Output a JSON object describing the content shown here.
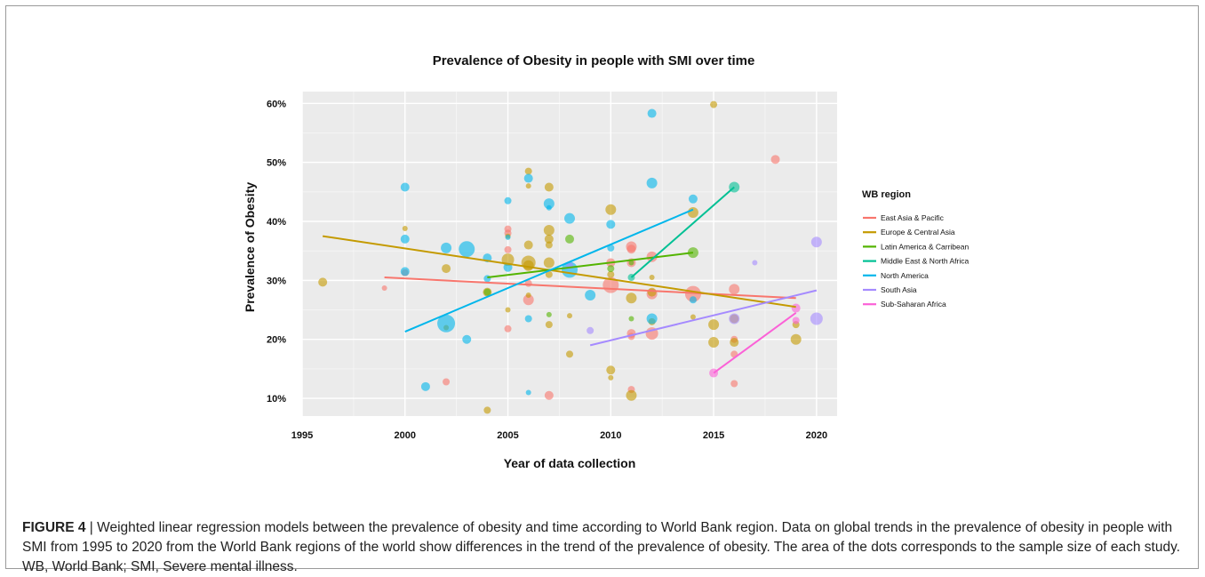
{
  "chart_data": {
    "type": "scatter",
    "title": "Prevalence of Obesity in people with SMI over time",
    "xlabel": "Year of data collection",
    "ylabel": "Prevalence of Obesity",
    "xlim": [
      1995,
      2021
    ],
    "ylim": [
      7,
      62
    ],
    "x_ticks": [
      1995,
      2000,
      2005,
      2010,
      2015,
      2020
    ],
    "y_ticks": [
      10,
      20,
      30,
      40,
      50,
      60
    ],
    "y_tick_labels": [
      "10%",
      "20%",
      "30%",
      "40%",
      "50%",
      "60%"
    ],
    "grid": true,
    "legend": {
      "title": "WB region",
      "placement": "right"
    },
    "series": [
      {
        "name": "East Asia & Pacific",
        "color": "#f8766d",
        "trend": [
          [
            1999,
            30.5
          ],
          [
            2019,
            27.0
          ]
        ],
        "points": [
          [
            1999,
            28.7,
            3
          ],
          [
            2000,
            31.3,
            4
          ],
          [
            2002,
            12.8,
            4
          ],
          [
            2005,
            38.7,
            4
          ],
          [
            2005,
            38.0,
            4
          ],
          [
            2005,
            35.2,
            4
          ],
          [
            2005,
            21.8,
            4
          ],
          [
            2006,
            29.5,
            4
          ],
          [
            2006,
            26.7,
            6
          ],
          [
            2007,
            10.5,
            5
          ],
          [
            2010,
            33.0,
            5
          ],
          [
            2010,
            29.2,
            9
          ],
          [
            2011,
            35.7,
            6
          ],
          [
            2011,
            35.3,
            5
          ],
          [
            2011,
            33.0,
            5
          ],
          [
            2011,
            21.0,
            5
          ],
          [
            2011,
            20.5,
            4
          ],
          [
            2011,
            11.5,
            4
          ],
          [
            2012,
            34.0,
            6
          ],
          [
            2012,
            27.7,
            6
          ],
          [
            2012,
            21.0,
            7
          ],
          [
            2014,
            27.7,
            9
          ],
          [
            2016,
            28.5,
            6
          ],
          [
            2016,
            20.0,
            4
          ],
          [
            2016,
            17.5,
            4
          ],
          [
            2016,
            12.5,
            4
          ],
          [
            2018,
            50.5,
            5
          ]
        ]
      },
      {
        "name": "Europe & Central Asia",
        "color": "#c49a00",
        "trend": [
          [
            1996,
            37.5
          ],
          [
            2019,
            25.5
          ]
        ],
        "points": [
          [
            1996,
            29.7,
            5
          ],
          [
            2000,
            38.8,
            3
          ],
          [
            2002,
            32.0,
            5
          ],
          [
            2002,
            22.0,
            3
          ],
          [
            2004,
            28.0,
            5
          ],
          [
            2004,
            8.0,
            4
          ],
          [
            2005,
            37.5,
            3
          ],
          [
            2005,
            33.5,
            7
          ],
          [
            2005,
            25.0,
            3
          ],
          [
            2006,
            48.5,
            4
          ],
          [
            2006,
            46.0,
            3
          ],
          [
            2006,
            36.0,
            5
          ],
          [
            2006,
            33.0,
            8
          ],
          [
            2006,
            32.5,
            6
          ],
          [
            2006,
            27.5,
            3
          ],
          [
            2007,
            45.8,
            5
          ],
          [
            2007,
            38.5,
            6
          ],
          [
            2007,
            37.0,
            5
          ],
          [
            2007,
            36.0,
            4
          ],
          [
            2007,
            33.0,
            6
          ],
          [
            2007,
            31.0,
            4
          ],
          [
            2007,
            22.5,
            4
          ],
          [
            2008,
            24.0,
            3
          ],
          [
            2008,
            17.5,
            4
          ],
          [
            2010,
            42.0,
            6
          ],
          [
            2010,
            31.0,
            4
          ],
          [
            2010,
            14.8,
            5
          ],
          [
            2010,
            13.5,
            3
          ],
          [
            2011,
            27.0,
            6
          ],
          [
            2011,
            10.5,
            6
          ],
          [
            2012,
            28.0,
            5
          ],
          [
            2012,
            30.5,
            3
          ],
          [
            2012,
            23.0,
            4
          ],
          [
            2014,
            41.5,
            6
          ],
          [
            2014,
            23.8,
            3
          ],
          [
            2015,
            59.8,
            4
          ],
          [
            2015,
            22.5,
            6
          ],
          [
            2015,
            19.5,
            6
          ],
          [
            2016,
            23.5,
            5
          ],
          [
            2016,
            19.5,
            5
          ],
          [
            2019,
            22.5,
            4
          ],
          [
            2019,
            20.0,
            6
          ]
        ]
      },
      {
        "name": "Latin America & Carribean",
        "color": "#53b400",
        "trend": [
          [
            2004,
            30.5
          ],
          [
            2014,
            34.7
          ]
        ],
        "points": [
          [
            2004,
            28.0,
            4
          ],
          [
            2007,
            24.2,
            3
          ],
          [
            2008,
            37.0,
            5
          ],
          [
            2010,
            32.0,
            4
          ],
          [
            2011,
            23.5,
            3
          ],
          [
            2011,
            33.0,
            3
          ],
          [
            2014,
            34.7,
            6
          ]
        ]
      },
      {
        "name": "Middle East & North Africa",
        "color": "#00c094",
        "trend": [
          [
            2011,
            30.5
          ],
          [
            2016,
            45.8
          ]
        ],
        "points": [
          [
            2011,
            30.5,
            4
          ],
          [
            2016,
            45.8,
            6
          ]
        ]
      },
      {
        "name": "North America",
        "color": "#00b6eb",
        "trend": [
          [
            2000,
            21.3
          ],
          [
            2014,
            42.0
          ]
        ],
        "points": [
          [
            2000,
            45.8,
            5
          ],
          [
            2000,
            37.0,
            5
          ],
          [
            2000,
            31.5,
            5
          ],
          [
            2001,
            12.0,
            5
          ],
          [
            2002,
            35.5,
            6
          ],
          [
            2002,
            22.7,
            10
          ],
          [
            2003,
            35.3,
            9
          ],
          [
            2003,
            20.0,
            5
          ],
          [
            2004,
            33.8,
            5
          ],
          [
            2004,
            30.3,
            4
          ],
          [
            2005,
            43.5,
            4
          ],
          [
            2005,
            37.3,
            3
          ],
          [
            2005,
            32.2,
            5
          ],
          [
            2006,
            47.3,
            5
          ],
          [
            2006,
            23.5,
            4
          ],
          [
            2006,
            11.0,
            3
          ],
          [
            2007,
            43.0,
            6
          ],
          [
            2007,
            42.3,
            3
          ],
          [
            2008,
            40.5,
            6
          ],
          [
            2008,
            31.8,
            9
          ],
          [
            2009,
            27.5,
            6
          ],
          [
            2010,
            39.5,
            5
          ],
          [
            2010,
            35.5,
            4
          ],
          [
            2012,
            58.3,
            5
          ],
          [
            2012,
            46.5,
            6
          ],
          [
            2012,
            23.5,
            6
          ],
          [
            2014,
            43.8,
            5
          ],
          [
            2014,
            26.7,
            4
          ]
        ]
      },
      {
        "name": "South Asia",
        "color": "#a58aff",
        "trend": [
          [
            2009,
            19.0
          ],
          [
            2020,
            28.3
          ]
        ],
        "points": [
          [
            2008,
            32.5,
            4
          ],
          [
            2009,
            21.5,
            4
          ],
          [
            2016,
            23.5,
            6
          ],
          [
            2017,
            33.0,
            3
          ],
          [
            2020,
            36.5,
            6
          ],
          [
            2020,
            23.5,
            7
          ]
        ]
      },
      {
        "name": "Sub-Saharan Africa",
        "color": "#fb61d7",
        "trend": [
          [
            2015,
            14.3
          ],
          [
            2019,
            24.5
          ]
        ],
        "points": [
          [
            2015,
            14.3,
            5
          ],
          [
            2019,
            25.3,
            5
          ],
          [
            2019,
            23.2,
            4
          ]
        ]
      }
    ]
  },
  "caption": {
    "label": "FIGURE 4",
    "text": " | Weighted linear regression models between the prevalence of obesity and time according to World Bank region. Data on global trends in the prevalence of obesity in people with SMI from 1995 to 2020 from the World Bank regions of the world show differences in the trend of the prevalence of obesity. The area of the dots corresponds to the sample size of each study. WB, World Bank; SMI, Severe mental illness."
  }
}
